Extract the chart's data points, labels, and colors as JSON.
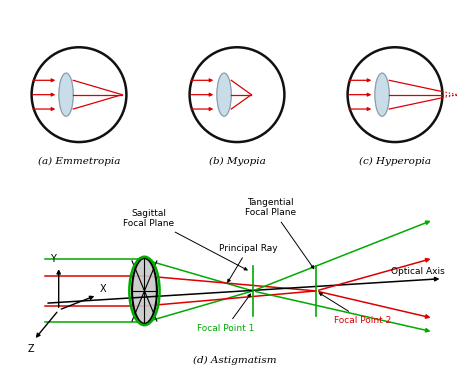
{
  "bg_color": "#ffffff",
  "eye_outline_color": "#111111",
  "lens_fill": "#c8dde8",
  "lens_border": "#8899aa",
  "ray_color": "#dd0000",
  "green_color": "#00aa00",
  "black_color": "#000000",
  "label_a": "(a) Emmetropia",
  "label_b": "(b) Myopia",
  "label_c": "(c) Hyperopia",
  "label_d": "(d) Astigmatism",
  "label_sagittal": "Sagittal\nFocal Plane",
  "label_tangential": "Tangential\nFocal Plane",
  "label_principal": "Principal Ray",
  "label_optical": "Optical Axis",
  "label_fp1": "Focal Point 1",
  "label_fp2": "Focal Point 2",
  "label_x": "X",
  "label_y": "Y",
  "label_z": "Z",
  "font_size_labels": 7.5,
  "font_size_small": 6.5
}
